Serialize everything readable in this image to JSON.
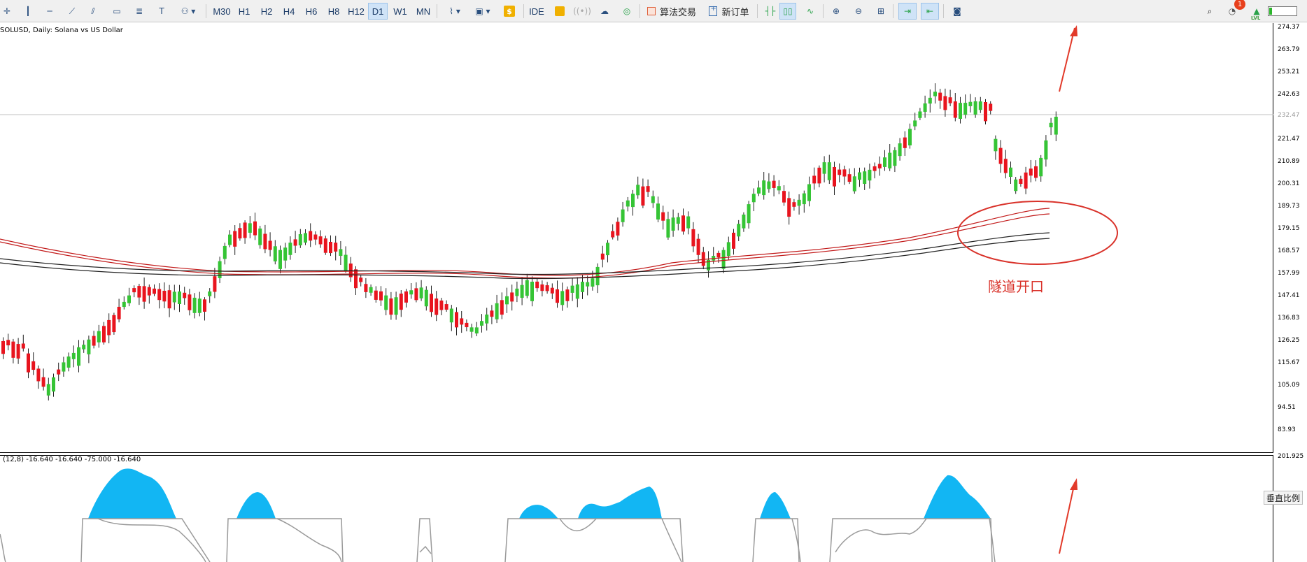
{
  "toolbar": {
    "timeframes": [
      "M30",
      "H1",
      "H2",
      "H4",
      "H6",
      "H8",
      "H12",
      "D1",
      "W1",
      "MN"
    ],
    "active_timeframe": "D1",
    "ide_label": "IDE",
    "algo_trading_label": "算法交易",
    "new_order_label": "新订单",
    "notification_count": "1",
    "level_label": "LVL"
  },
  "chart": {
    "symbol_title": "SOLUSD, Daily:  Solana vs US Dollar",
    "price_ticks": [
      "274.37",
      "263.79",
      "253.21",
      "242.63",
      "232.47",
      "221.47",
      "210.89",
      "200.31",
      "189.73",
      "179.15",
      "168.57",
      "157.99",
      "147.41",
      "136.83",
      "126.25",
      "115.67",
      "105.09",
      "94.51",
      "83.93"
    ],
    "current_price": "232.47",
    "annotation": "隧道开口"
  },
  "indicator": {
    "label": "(12,8) -16.640 -16.640 -75.000 -16.640",
    "top_value": "201.925",
    "vertical_scale_label": "垂直比例"
  },
  "colors": {
    "bull": "#35c435",
    "bear": "#e8141e",
    "histogram": "#12b6f3",
    "annotation": "#d9322a"
  }
}
